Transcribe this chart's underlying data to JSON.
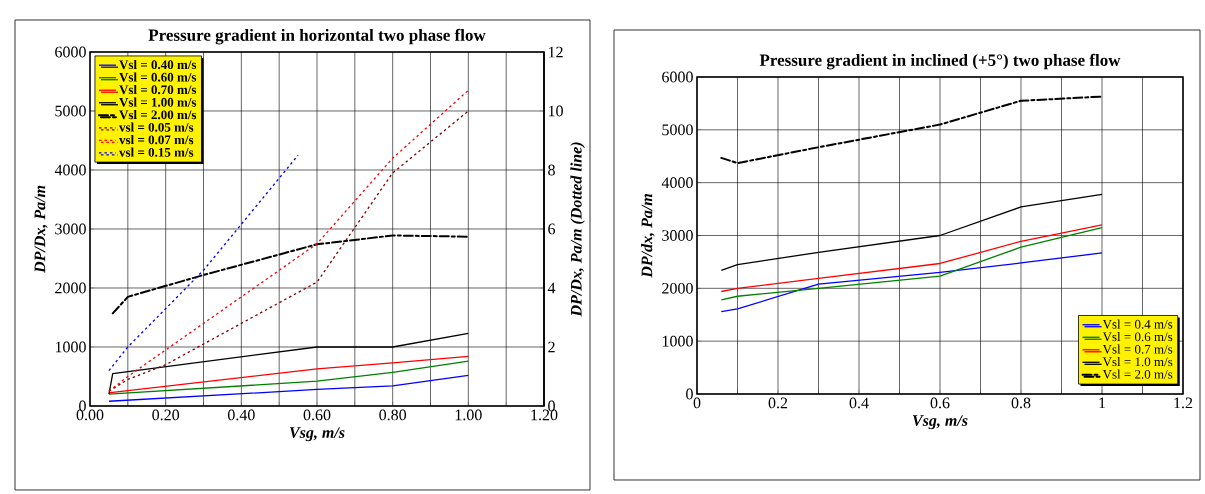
{
  "chart_data": [
    {
      "type": "line",
      "title": "Pressure gradient in horizontal two phase flow",
      "xlabel": "Vsg, m/s",
      "ylabel": "DP/Dx, Pa/m",
      "y2label": "DP/Dx, Pa/m (Dotted line)",
      "xlim": [
        0,
        1.2
      ],
      "ylim": [
        0,
        6000
      ],
      "y2lim": [
        0,
        12
      ],
      "xticks": [
        {
          "value": 0,
          "label": "0.00"
        },
        {
          "value": 0.1,
          "label": null
        },
        {
          "value": 0.2,
          "label": "0.20"
        },
        {
          "value": 0.3,
          "label": null
        },
        {
          "value": 0.4,
          "label": "0.40"
        },
        {
          "value": 0.5,
          "label": null
        },
        {
          "value": 0.6,
          "label": "0.60"
        },
        {
          "value": 0.7,
          "label": null
        },
        {
          "value": 0.8,
          "label": "0.80"
        },
        {
          "value": 0.9,
          "label": null
        },
        {
          "value": 1.0,
          "label": "1.00"
        },
        {
          "value": 1.1,
          "label": null
        },
        {
          "value": 1.2,
          "label": "1.20"
        }
      ],
      "yticks": [
        0,
        1000,
        2000,
        3000,
        4000,
        5000,
        6000
      ],
      "y2ticks": [
        0,
        2,
        4,
        6,
        8,
        10,
        12
      ],
      "grid": true,
      "legend": "top left",
      "series": [
        {
          "name": "Vsl = 0.40 m/s",
          "color": "#0000ff",
          "line_style": "solid",
          "x": [
            0.05,
            0.6,
            0.8,
            1.0
          ],
          "values": [
            80,
            280,
            340,
            520
          ]
        },
        {
          "name": "Vsl = 0.60 m/s",
          "color": "#008000",
          "line_style": "solid",
          "x": [
            0.05,
            0.6,
            0.8,
            1.0
          ],
          "values": [
            200,
            420,
            570,
            760
          ]
        },
        {
          "name": "Vsl = 0.70 m/s",
          "color": "#ff0000",
          "line_style": "solid",
          "x": [
            0.05,
            0.06,
            0.6,
            0.8,
            1.0
          ],
          "values": [
            220,
            230,
            630,
            730,
            840
          ]
        },
        {
          "name": "Vsl = 1.00 m/s",
          "color": "#000000",
          "line_style": "solid",
          "x": [
            0.05,
            0.06,
            0.6,
            0.8,
            1.0
          ],
          "values": [
            200,
            550,
            1000,
            1000,
            1230
          ]
        },
        {
          "name": "Vsl = 2.00 m/s",
          "color": "#000000",
          "line_style": "dashdot",
          "x": [
            0.06,
            0.1,
            0.3,
            0.6,
            0.8,
            1.0
          ],
          "values": [
            1570,
            1850,
            2220,
            2740,
            2890,
            2870
          ]
        },
        {
          "name": "vsl = 0.05 m/s",
          "color": "#800000",
          "line_style": "dotted",
          "axis": "y2",
          "x": [
            0.05,
            0.1,
            0.2,
            0.3,
            0.6,
            0.8,
            1.0
          ],
          "values": [
            0.5,
            0.9,
            1.4,
            2.1,
            4.2,
            7.9,
            10.0
          ]
        },
        {
          "name": "vsl = 0.07 m/s",
          "color": "#ff0000",
          "line_style": "dotted",
          "axis": "y2",
          "x": [
            0.05,
            0.1,
            0.3,
            0.6,
            0.8,
            1.0
          ],
          "values": [
            0.5,
            1.0,
            2.8,
            5.5,
            8.4,
            10.7
          ]
        },
        {
          "name": "vsl = 0.15 m/s",
          "color": "#0000ff",
          "line_style": "dotted",
          "axis": "y2",
          "x": [
            0.05,
            0.1,
            0.3,
            0.55
          ],
          "values": [
            1.2,
            2.0,
            4.6,
            8.5
          ]
        }
      ]
    },
    {
      "type": "line",
      "title": "Pressure gradient in inclined (+5°) two phase flow",
      "xlabel": "Vsg, m/s",
      "ylabel": "DP/dx, Pa/m",
      "xlim": [
        0,
        1.2
      ],
      "ylim": [
        0,
        6000
      ],
      "xticks": [
        0,
        {
          "value": 0.1,
          "label": null
        },
        0.2,
        {
          "value": 0.3,
          "label": null
        },
        0.4,
        {
          "value": 0.5,
          "label": null
        },
        0.6,
        {
          "value": 0.7,
          "label": null
        },
        0.8,
        {
          "value": 0.9,
          "label": null
        },
        1,
        {
          "value": 1.1,
          "label": null
        },
        1.2
      ],
      "yticks": [
        0,
        1000,
        2000,
        3000,
        4000,
        5000,
        6000
      ],
      "grid": true,
      "legend": "bottom right",
      "series": [
        {
          "name": "Vsl = 0.4 m/s",
          "color": "#0000ff",
          "line_style": "solid",
          "x": [
            0.06,
            0.1,
            0.3,
            0.6,
            0.8,
            1.0
          ],
          "values": [
            1560,
            1610,
            2080,
            2300,
            2480,
            2670
          ]
        },
        {
          "name": "Vsl = 0.6 m/s",
          "color": "#008000",
          "line_style": "solid",
          "x": [
            0.06,
            0.1,
            0.3,
            0.6,
            0.8,
            1.0
          ],
          "values": [
            1780,
            1850,
            2000,
            2230,
            2780,
            3150
          ]
        },
        {
          "name": "Vsl = 0.7 m/s",
          "color": "#ff0000",
          "line_style": "solid",
          "x": [
            0.06,
            0.1,
            0.3,
            0.6,
            0.8,
            1.0
          ],
          "values": [
            1940,
            2000,
            2190,
            2470,
            2890,
            3200
          ]
        },
        {
          "name": "Vsl = 1.0 m/s",
          "color": "#000000",
          "line_style": "solid",
          "x": [
            0.06,
            0.1,
            0.3,
            0.6,
            0.8,
            1.0
          ],
          "values": [
            2340,
            2450,
            2680,
            3000,
            3540,
            3780
          ]
        },
        {
          "name": "Vsl = 2.0 m/s",
          "color": "#000000",
          "line_style": "dashdot",
          "x": [
            0.06,
            0.1,
            0.3,
            0.6,
            0.8,
            1.0
          ],
          "values": [
            4470,
            4370,
            4670,
            5100,
            5550,
            5630
          ]
        }
      ]
    }
  ]
}
